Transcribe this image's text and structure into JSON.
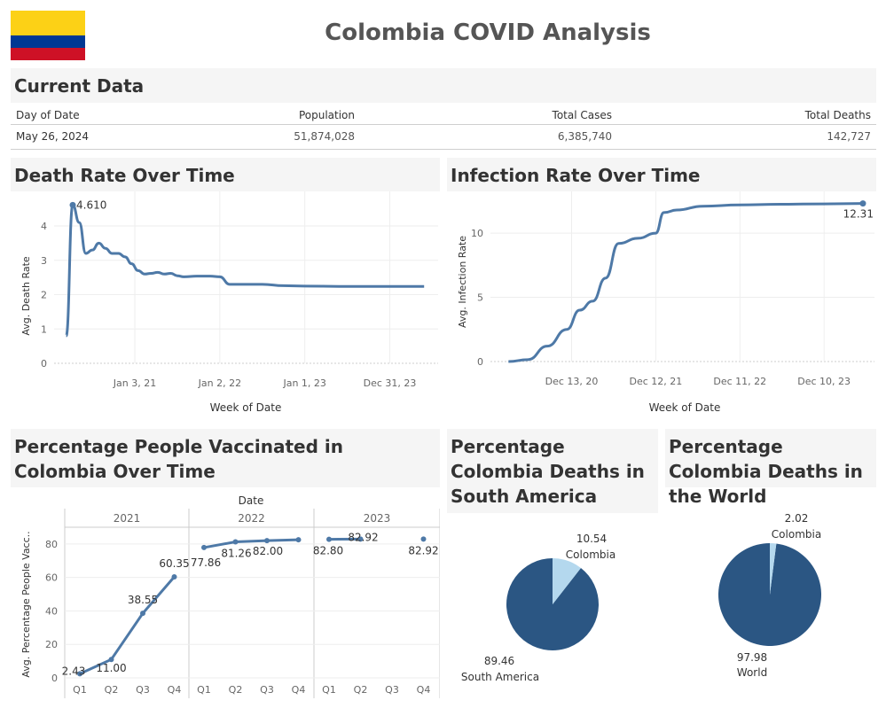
{
  "header": {
    "title": "Colombia COVID Analysis",
    "flag_colors": [
      "#FCD116",
      "#003893",
      "#CE1126"
    ]
  },
  "current_data": {
    "title": "Current Data",
    "columns": [
      "Day of Date",
      "Population",
      "Total Cases",
      "Total Deaths"
    ],
    "row": [
      "May 26, 2024",
      "51,874,028",
      "6,385,740",
      "142,727"
    ]
  },
  "death_rate": {
    "title": "Death Rate Over Time",
    "xlabel": "Week of Date",
    "ylabel": "Avg. Death Rate",
    "yticks": [
      "0",
      "1",
      "2",
      "3",
      "4"
    ],
    "xticks": [
      "Jan 3, 21",
      "Jan 2, 22",
      "Jan 1, 23",
      "Dec 31, 23"
    ],
    "peak_label": "4.610"
  },
  "infection_rate": {
    "title": "Infection Rate Over Time",
    "xlabel": "Week of Date",
    "ylabel": "Avg. Infection Rate",
    "yticks": [
      "0",
      "5",
      "10"
    ],
    "xticks": [
      "Dec 13, 20",
      "Dec 12, 21",
      "Dec 11, 22",
      "Dec 10, 23"
    ],
    "end_label": "12.31"
  },
  "vaccinated": {
    "title": "Percentage People Vaccinated in Colombia Over Time",
    "top_label": "Date",
    "ylabel": "Avg. Percentage People Vacc..",
    "yticks": [
      "0",
      "20",
      "40",
      "60",
      "80"
    ],
    "years": [
      "2021",
      "2022",
      "2023"
    ],
    "quarters": [
      "Q1",
      "Q2",
      "Q3",
      "Q4"
    ],
    "value_labels": [
      "2.43",
      "11.00",
      "38.55",
      "60.35",
      "77.86",
      "81.26",
      "82.00",
      "82.80",
      "82.92",
      "82.92"
    ]
  },
  "pie_sa": {
    "title": "Percentage Colombia Deaths in South America",
    "slices": [
      {
        "label": "Colombia",
        "value": "10.54"
      },
      {
        "label": "South America",
        "value": "89.46"
      }
    ]
  },
  "pie_world": {
    "title": "Percentage Colombia Deaths in the World",
    "slices": [
      {
        "label": "Colombia",
        "value": "2.02"
      },
      {
        "label": "World",
        "value": "97.98"
      }
    ]
  },
  "colors": {
    "line": "#4e79a7",
    "pie_dark": "#2b5683",
    "pie_light": "#b4d8ee",
    "grid": "#eeeeee",
    "axis_text": "#666666"
  },
  "chart_data": [
    {
      "type": "line",
      "title": "Death Rate Over Time",
      "xlabel": "Week of Date",
      "ylabel": "Avg. Death Rate",
      "ylim": [
        0,
        4.8
      ],
      "x": [
        "2020-03-15",
        "2020-04-12",
        "2020-05-10",
        "2020-06-07",
        "2020-07-05",
        "2020-08-02",
        "2020-08-30",
        "2020-09-27",
        "2020-10-25",
        "2020-11-22",
        "2020-12-20",
        "2021-01-17",
        "2021-02-14",
        "2021-03-14",
        "2021-04-11",
        "2021-05-09",
        "2021-06-06",
        "2021-07-04",
        "2021-08-01",
        "2021-09-26",
        "2021-11-21",
        "2022-01-02",
        "2022-02-13",
        "2022-04-10",
        "2022-07-03",
        "2022-10-02",
        "2023-01-01",
        "2023-06-04",
        "2023-12-31",
        "2024-05-26"
      ],
      "series": [
        {
          "values": [
            0.8,
            4.61,
            4.1,
            3.2,
            3.3,
            3.5,
            3.35,
            3.2,
            3.2,
            3.1,
            2.9,
            2.7,
            2.6,
            2.62,
            2.65,
            2.6,
            2.62,
            2.55,
            2.52,
            2.54,
            2.54,
            2.52,
            2.3,
            2.3,
            2.3,
            2.26,
            2.25,
            2.24,
            2.24,
            2.24
          ]
        }
      ],
      "annotations": [
        "4.610"
      ]
    },
    {
      "type": "line",
      "title": "Infection Rate Over Time",
      "xlabel": "Week of Date",
      "ylabel": "Avg. Infection Rate",
      "ylim": [
        0,
        12.5
      ],
      "x": [
        "2020-03-15",
        "2020-06-07",
        "2020-08-30",
        "2020-11-22",
        "2021-01-17",
        "2021-03-14",
        "2021-05-09",
        "2021-07-04",
        "2021-09-26",
        "2021-12-12",
        "2022-01-16",
        "2022-03-13",
        "2022-07-03",
        "2022-12-11",
        "2023-06-04",
        "2023-12-10",
        "2024-05-26"
      ],
      "series": [
        {
          "values": [
            0.0,
            0.15,
            1.2,
            2.5,
            4.0,
            4.7,
            6.5,
            9.2,
            9.6,
            10.0,
            11.6,
            11.8,
            12.1,
            12.2,
            12.25,
            12.28,
            12.31
          ]
        }
      ],
      "annotations": [
        "12.31"
      ]
    },
    {
      "type": "line",
      "title": "Percentage People Vaccinated in Colombia Over Time",
      "xlabel": "Date",
      "ylabel": "Avg. Percentage People Vacc..",
      "ylim": [
        0,
        90
      ],
      "categories": [
        "2021 Q1",
        "2021 Q2",
        "2021 Q3",
        "2021 Q4",
        "2022 Q1",
        "2022 Q2",
        "2022 Q3",
        "2022 Q4",
        "2023 Q1",
        "2023 Q2",
        "2023 Q3",
        "2023 Q4"
      ],
      "series": [
        {
          "values": [
            2.43,
            11.0,
            38.55,
            60.35,
            77.86,
            81.26,
            82.0,
            82.5,
            82.8,
            82.92,
            null,
            82.92
          ]
        }
      ]
    },
    {
      "type": "pie",
      "title": "Percentage Colombia Deaths in South America",
      "categories": [
        "Colombia",
        "South America"
      ],
      "values": [
        10.54,
        89.46
      ]
    },
    {
      "type": "pie",
      "title": "Percentage Colombia Deaths in the World",
      "categories": [
        "Colombia",
        "World"
      ],
      "values": [
        2.02,
        97.98
      ]
    }
  ]
}
